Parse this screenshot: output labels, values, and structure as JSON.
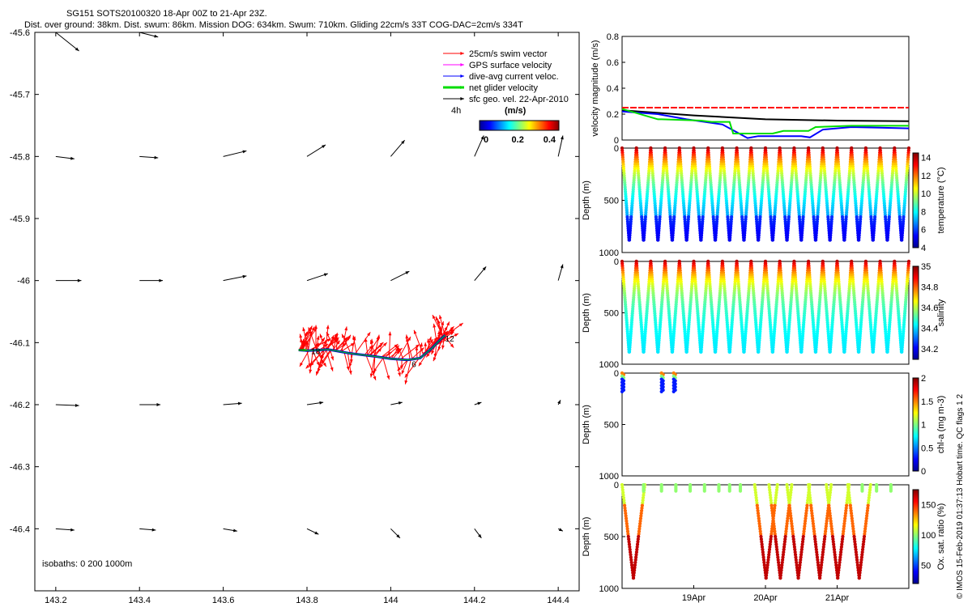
{
  "header": {
    "title": "SG151 SOTS20100320 18-Apr 00Z to 21-Apr 23Z.",
    "subtitle": "Dist. over ground: 38km. Dist. swum: 86km. Mission DOG: 634km. Swum: 710km. Gliding 22cm/s 33T COG-DAC=2cm/s 334T"
  },
  "credit": "© IMOS 15-Feb-2019 01:37:13 Hobart time. QC flags 1  2",
  "chart_data": [
    {
      "type": "scatter",
      "name": "map",
      "xlim": [
        143.15,
        144.45
      ],
      "ylim": [
        -46.5,
        -45.6
      ],
      "xticks": [
        "143.2",
        "143.4",
        "143.6",
        "143.8",
        "144",
        "144.2",
        "144.4"
      ],
      "yticks": [
        "-45.6",
        "-45.7",
        "-45.8",
        "-45.9",
        "-46",
        "-46.1",
        "-46.2",
        "-46.3",
        "-46.4"
      ],
      "legend": {
        "position": "top-right",
        "entries": [
          {
            "label": "25cm/s swim vector",
            "color": "#ff0000"
          },
          {
            "label": "GPS surface velocity",
            "color": "#ff00ff"
          },
          {
            "label": "dive-avg current veloc.",
            "color": "#0000ff"
          },
          {
            "label": "net glider velocity",
            "color": "#00dd00"
          },
          {
            "label": "sfc geo. vel. 22-Apr-2010",
            "color": "#000000"
          }
        ]
      },
      "colorbar": {
        "label": "(m/s)",
        "ticks": [
          "0",
          "0.2",
          "0.4"
        ],
        "range": [
          0,
          0.5
        ]
      },
      "time_label": "4h",
      "isobaths_label": "isobaths: 0   200   1000m",
      "track_labels": [
        {
          "text": "18",
          "lon": 143.81,
          "lat": -46.113
        },
        {
          "text": "12",
          "lon": 144.13,
          "lat": -46.093
        },
        {
          "text": "6",
          "lon": 144.05,
          "lat": -46.134
        }
      ],
      "track": [
        [
          143.78,
          -46.112
        ],
        [
          143.8,
          -46.113
        ],
        [
          143.83,
          -46.112
        ],
        [
          143.85,
          -46.111
        ],
        [
          143.9,
          -46.117
        ],
        [
          143.96,
          -46.122
        ],
        [
          144.0,
          -46.126
        ],
        [
          144.04,
          -46.128
        ],
        [
          144.07,
          -46.125
        ],
        [
          144.1,
          -46.108
        ],
        [
          144.12,
          -46.094
        ],
        [
          144.13,
          -46.088
        ]
      ],
      "sfc_vectors": {
        "lons": [
          143.2,
          143.4,
          143.6,
          143.8,
          144.0,
          144.2,
          144.4
        ],
        "lats": [
          -45.6,
          -45.8,
          -46.0,
          -46.2,
          -46.4
        ],
        "rows": [
          [
            [
              0.05,
              -0.04
            ],
            [
              0.04,
              -0.01
            ],
            null,
            null,
            null,
            null,
            null
          ],
          [
            [
              0.04,
              -0.005
            ],
            [
              0.04,
              -0.003
            ],
            [
              0.05,
              0.012
            ],
            [
              0.04,
              0.025
            ],
            [
              0.03,
              0.035
            ],
            [
              0.02,
              0.045
            ],
            [
              0.01,
              0.045
            ]
          ],
          [
            [
              0.055,
              0.0
            ],
            [
              0.05,
              0.0
            ],
            [
              0.05,
              0.01
            ],
            [
              0.045,
              0.015
            ],
            [
              0.04,
              0.02
            ],
            [
              0.025,
              0.03
            ],
            [
              0.01,
              0.035
            ]
          ],
          [
            [
              0.05,
              -0.002
            ],
            [
              0.045,
              0.0
            ],
            [
              0.04,
              0.003
            ],
            [
              0.035,
              0.005
            ],
            [
              0.025,
              0.005
            ],
            [
              0.015,
              0.005
            ],
            [
              0.005,
              0.01
            ]
          ],
          [
            [
              0.04,
              -0.003
            ],
            [
              0.035,
              -0.003
            ],
            [
              0.03,
              -0.005
            ],
            [
              0.025,
              -0.012
            ],
            [
              0.02,
              -0.02
            ],
            [
              0.015,
              -0.02
            ],
            [
              0.01,
              -0.005
            ]
          ]
        ]
      }
    },
    {
      "type": "line",
      "name": "velocity",
      "ylabel": "velocity magnitude (m/s)",
      "ylim": [
        0,
        0.8
      ],
      "yticks": [
        "0",
        "0.2",
        "0.4",
        "0.6",
        "0.8"
      ],
      "xlim": [
        18.0,
        22.0
      ],
      "series": [
        {
          "color": "#ff0000",
          "points": [
            [
              18.0,
              0.25
            ],
            [
              22.0,
              0.25
            ]
          ]
        },
        {
          "color": "#000000",
          "points": [
            [
              18.0,
              0.23
            ],
            [
              19.0,
              0.19
            ],
            [
              20.0,
              0.16
            ],
            [
              21.0,
              0.15
            ],
            [
              22.0,
              0.145
            ]
          ]
        },
        {
          "color": "#0000ff",
          "points": [
            [
              18.0,
              0.22
            ],
            [
              18.5,
              0.2
            ],
            [
              18.9,
              0.16
            ],
            [
              19.4,
              0.12
            ],
            [
              19.6,
              0.06
            ],
            [
              19.75,
              0.015
            ],
            [
              19.9,
              0.03
            ],
            [
              20.2,
              0.03
            ],
            [
              20.5,
              0.03
            ],
            [
              20.62,
              0.02
            ],
            [
              20.8,
              0.08
            ],
            [
              21.2,
              0.1
            ],
            [
              21.6,
              0.095
            ],
            [
              22.0,
              0.09
            ]
          ]
        },
        {
          "color": "#00dd00",
          "points": [
            [
              18.0,
              0.24
            ],
            [
              18.5,
              0.16
            ],
            [
              18.55,
              0.16
            ],
            [
              19.1,
              0.15
            ],
            [
              19.25,
              0.14
            ],
            [
              19.5,
              0.14
            ],
            [
              19.55,
              0.05
            ],
            [
              20.1,
              0.05
            ],
            [
              20.25,
              0.07
            ],
            [
              20.5,
              0.07
            ],
            [
              20.6,
              0.07
            ],
            [
              20.7,
              0.1
            ],
            [
              21.2,
              0.11
            ],
            [
              22.0,
              0.11
            ]
          ]
        }
      ]
    },
    {
      "type": "scatter",
      "name": "temperature",
      "ylabel": "Depth (m)",
      "yticks": [
        "0",
        "500",
        "1000"
      ],
      "ylim": [
        0,
        1000
      ],
      "clabel": "temperature (°C)",
      "cticks": [
        "4",
        "6",
        "8",
        "10",
        "12",
        "14"
      ],
      "crange": [
        4,
        14.5
      ],
      "profile_times": [
        18.0,
        18.2,
        18.4,
        18.6,
        18.8,
        19.0,
        19.2,
        19.4,
        19.6,
        19.8,
        20.0,
        20.2,
        20.4,
        20.6,
        20.8,
        21.0,
        21.2,
        21.4,
        21.6,
        21.8
      ],
      "max_depth_m": 900,
      "surface_value": 14.0,
      "deep_value": 5.5
    },
    {
      "type": "scatter",
      "name": "salinity",
      "ylabel": "Depth (m)",
      "yticks": [
        "0",
        "500",
        "1000"
      ],
      "ylim": [
        0,
        1000
      ],
      "clabel": "salinity",
      "cticks": [
        "34.2",
        "34.4",
        "34.6",
        "34.8",
        "35"
      ],
      "crange": [
        34.1,
        35.0
      ],
      "profile_times": [
        18.0,
        18.2,
        18.4,
        18.6,
        18.8,
        19.0,
        19.2,
        19.4,
        19.6,
        19.8,
        20.0,
        20.2,
        20.4,
        20.6,
        20.8,
        21.0,
        21.2,
        21.4,
        21.6,
        21.8
      ],
      "max_depth_m": 900,
      "surface_value": 34.95,
      "deep_value": 34.4
    },
    {
      "type": "scatter",
      "name": "chlorophyll",
      "ylabel": "Depth (m)",
      "yticks": [
        "0",
        "500",
        "1000"
      ],
      "ylim": [
        0,
        1000
      ],
      "clabel": "chl-a (mg m-3)",
      "cticks": [
        "0",
        "0.5",
        "1",
        "1.5",
        "2"
      ],
      "crange": [
        0,
        2
      ],
      "profile_times": [
        18.0,
        18.55,
        18.72
      ],
      "max_depth_m": 180
    },
    {
      "type": "scatter",
      "name": "oxygen",
      "ylabel": "Depth (m)",
      "yticks": [
        "0",
        "500",
        "1000"
      ],
      "ylim": [
        0,
        1000
      ],
      "clabel": "Ox. sat. ratio (%)",
      "cticks": [
        "50",
        "100",
        "150"
      ],
      "crange": [
        20,
        175
      ],
      "deep_times": [
        18.0,
        19.85,
        20.05,
        20.3,
        20.6,
        20.85,
        21.15
      ],
      "deep_max_m": 900,
      "shallow_times": [
        18.3,
        18.55,
        18.75,
        18.95,
        19.15,
        19.35,
        19.5,
        19.65,
        21.35,
        21.55,
        21.75
      ],
      "shallow_max_m": 60,
      "xticks": [
        {
          "label": "19Apr",
          "t": 19.0
        },
        {
          "label": "20Apr",
          "t": 20.0
        },
        {
          "label": "21Apr",
          "t": 21.0
        }
      ],
      "xlim": [
        18.0,
        22.0
      ]
    }
  ]
}
